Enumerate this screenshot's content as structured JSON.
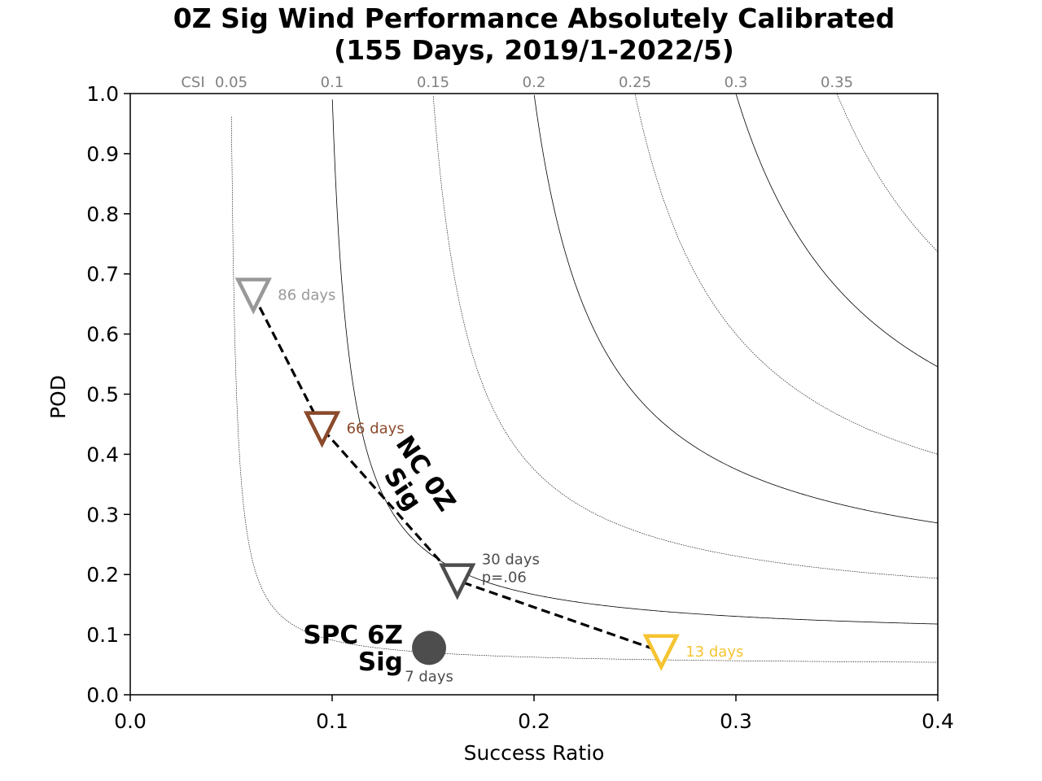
{
  "chart_data": {
    "type": "scatter",
    "title": "0Z Sig Wind Performance Absolutely Calibrated",
    "subtitle": "(155 Days, 2019/1-2022/5)",
    "xlabel": "Success Ratio",
    "ylabel": "POD",
    "xlim": [
      0.0,
      0.4
    ],
    "ylim": [
      0.0,
      1.0
    ],
    "x_ticks": [
      "0.0",
      "0.1",
      "0.2",
      "0.3",
      "0.4"
    ],
    "y_ticks": [
      "0.0",
      "0.1",
      "0.2",
      "0.3",
      "0.4",
      "0.5",
      "0.6",
      "0.7",
      "0.8",
      "0.9",
      "1.0"
    ],
    "csi_prefix": "CSI",
    "csi_contours": [
      {
        "value": 0.05,
        "label": "0.05",
        "style": "dotted"
      },
      {
        "value": 0.1,
        "label": "0.1",
        "style": "solid"
      },
      {
        "value": 0.15,
        "label": "0.15",
        "style": "dotted"
      },
      {
        "value": 0.2,
        "label": "0.2",
        "style": "solid"
      },
      {
        "value": 0.25,
        "label": "0.25",
        "style": "dotted"
      },
      {
        "value": 0.3,
        "label": "0.3",
        "style": "solid"
      },
      {
        "value": 0.35,
        "label": "0.35",
        "style": "dotted"
      }
    ],
    "series": [
      {
        "name": "NC 0Z Sig",
        "name_lines": [
          "NC 0Z",
          "Sig"
        ],
        "marker": "triangle-down",
        "line_style": "dashed",
        "points": [
          {
            "x": 0.061,
            "y": 0.665,
            "lines": [
              "86 days"
            ],
            "color": "#999999"
          },
          {
            "x": 0.095,
            "y": 0.443,
            "lines": [
              "66 days"
            ],
            "color": "#8b4a2b"
          },
          {
            "x": 0.162,
            "y": 0.19,
            "lines": [
              "30 days",
              "p=.06"
            ],
            "color": "#4d4d4d"
          },
          {
            "x": 0.263,
            "y": 0.072,
            "lines": [
              "13 days"
            ],
            "color": "#f5c431"
          }
        ]
      },
      {
        "name": "SPC 6Z Sig",
        "name_lines": [
          "SPC 6Z",
          "Sig"
        ],
        "marker": "circle",
        "points": [
          {
            "x": 0.148,
            "y": 0.078,
            "lines": [
              "7 days"
            ],
            "color": "#4d4d4d"
          }
        ]
      }
    ],
    "grid": false,
    "legend": "none"
  }
}
